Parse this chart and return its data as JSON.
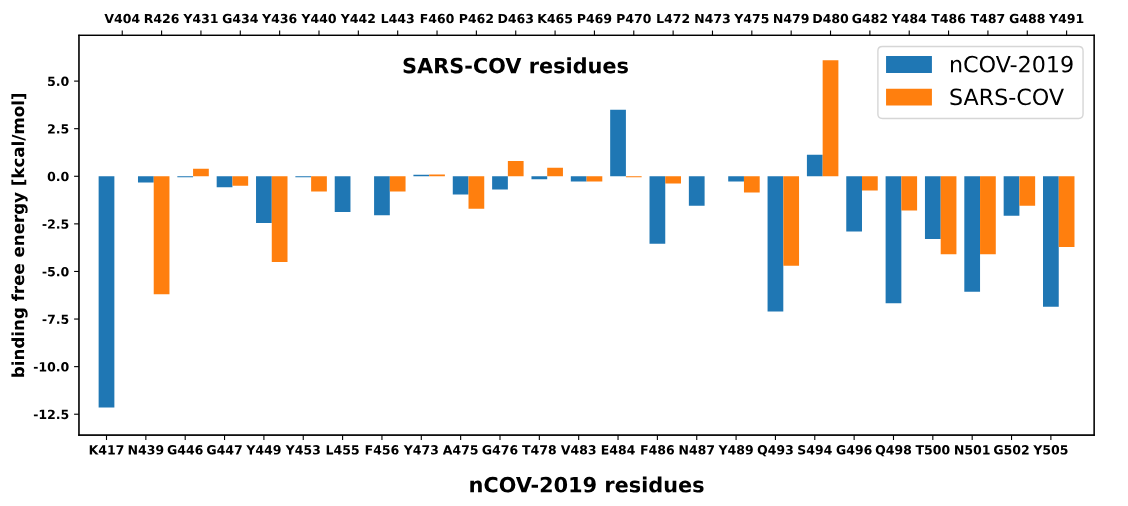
{
  "chart_data": {
    "type": "bar",
    "xlabel": "nCOV-2019 residues",
    "x2label": "SARS-COV residues",
    "ylabel": "binding free energy [kcal/mol]",
    "categories": [
      "K417",
      "N439",
      "G446",
      "G447",
      "Y449",
      "Y453",
      "L455",
      "F456",
      "Y473",
      "A475",
      "G476",
      "T478",
      "V483",
      "E484",
      "F486",
      "N487",
      "Y489",
      "Q493",
      "S494",
      "G496",
      "Q498",
      "T500",
      "N501",
      "G502",
      "Y505"
    ],
    "annotations": [
      "V404",
      "R426",
      "Y431",
      "G434",
      "Y436",
      "Y440",
      "Y442",
      "L443",
      "F460",
      "P462",
      "D463",
      "K465",
      "P469",
      "P470",
      "L472",
      "N473",
      "Y475",
      "N479",
      "D480",
      "G482",
      "Y484",
      "T486",
      "T487",
      "G488",
      "Y491"
    ],
    "series": [
      {
        "name": "nCOV-2019",
        "color": "#1f77b4",
        "values": [
          -12.15,
          -0.33,
          -0.05,
          -0.58,
          -2.45,
          -0.05,
          -1.87,
          -2.05,
          0.08,
          -0.96,
          -0.7,
          -0.15,
          -0.28,
          3.5,
          -3.55,
          -1.55,
          -0.28,
          -7.1,
          1.13,
          -2.9,
          -6.67,
          -3.3,
          -6.07,
          -2.07,
          -6.86
        ]
      },
      {
        "name": "SARS-COV",
        "color": "#ff7f0e",
        "values": [
          0.0,
          -6.2,
          0.4,
          -0.5,
          -4.5,
          -0.8,
          0.0,
          -0.8,
          0.1,
          -1.7,
          0.8,
          0.45,
          -0.28,
          -0.05,
          -0.38,
          0.0,
          -0.85,
          -4.7,
          6.1,
          -0.75,
          -1.8,
          -4.1,
          -4.1,
          -1.55,
          -3.72
        ]
      }
    ],
    "ylim": [
      -13.6,
      7.4
    ],
    "yticks": [
      {
        "value": -12.5,
        "label": "-12.5"
      },
      {
        "value": -10,
        "label": "-10.0"
      },
      {
        "value": -7.5,
        "label": "-7.5"
      },
      {
        "value": -5,
        "label": "-5.0"
      },
      {
        "value": -2.5,
        "label": "-2.5"
      },
      {
        "value": 0,
        "label": "0.0"
      },
      {
        "value": 2.5,
        "label": "2.5"
      },
      {
        "value": 5,
        "label": "5.0"
      }
    ],
    "legend": "top right",
    "grid": false
  }
}
